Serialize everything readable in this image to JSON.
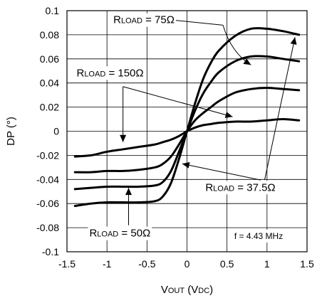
{
  "chart_data": {
    "type": "line",
    "title": "",
    "xlabel": {
      "main": "V",
      "sub1": "OUT",
      "mid": " (V",
      "sub2": "DC",
      "end": ")"
    },
    "ylabel": "DP (°)",
    "xlim": [
      -1.5,
      1.5
    ],
    "ylim": [
      -0.1,
      0.1
    ],
    "x_ticks": [
      -1.5,
      -1,
      -0.5,
      0,
      0.5,
      1,
      1.5
    ],
    "x_tick_labels": [
      "-1.5",
      "-1",
      "-0.5",
      "0",
      "0.5",
      "1",
      "1.5"
    ],
    "y_ticks": [
      0.1,
      0.08,
      0.06,
      0.04,
      0.02,
      0,
      -0.02,
      -0.04,
      -0.06,
      -0.08,
      -0.1
    ],
    "y_tick_labels": [
      "0.1",
      "0.08",
      "0.06",
      "0.04",
      "0.02",
      "0",
      "-0.02",
      "-0.04",
      "-0.06",
      "-0.08",
      "-0.1"
    ],
    "grid": true,
    "series": [
      {
        "name": "RLOAD = 150Ω",
        "x": [
          -1.4,
          -1.2,
          -1.0,
          -0.8,
          -0.6,
          -0.4,
          -0.3,
          -0.2,
          -0.1,
          0,
          0.1,
          0.2,
          0.3,
          0.4,
          0.6,
          0.8,
          1.0,
          1.2,
          1.4
        ],
        "y": [
          -0.021,
          -0.02,
          -0.017,
          -0.015,
          -0.013,
          -0.011,
          -0.009,
          -0.007,
          -0.004,
          0,
          0.003,
          0.005,
          0.006,
          0.007,
          0.008,
          0.008,
          0.009,
          0.01,
          0.009
        ]
      },
      {
        "name": "RLOAD = 37.5Ω",
        "x": [
          -1.4,
          -1.2,
          -1.0,
          -0.8,
          -0.6,
          -0.4,
          -0.3,
          -0.2,
          -0.1,
          0,
          0.1,
          0.2,
          0.3,
          0.4,
          0.6,
          0.8,
          1.0,
          1.2,
          1.4
        ],
        "y": [
          -0.034,
          -0.034,
          -0.033,
          -0.033,
          -0.032,
          -0.03,
          -0.027,
          -0.021,
          -0.011,
          0,
          0.009,
          0.015,
          0.02,
          0.025,
          0.032,
          0.035,
          0.036,
          0.035,
          0.034
        ]
      },
      {
        "name": "RLOAD = 75Ω",
        "x": [
          -1.4,
          -1.2,
          -1.0,
          -0.8,
          -0.6,
          -0.4,
          -0.3,
          -0.2,
          -0.1,
          0,
          0.1,
          0.2,
          0.3,
          0.4,
          0.6,
          0.8,
          1.0,
          1.2,
          1.4
        ],
        "y": [
          -0.048,
          -0.047,
          -0.046,
          -0.046,
          -0.046,
          -0.045,
          -0.042,
          -0.033,
          -0.017,
          0,
          0.017,
          0.031,
          0.041,
          0.049,
          0.058,
          0.062,
          0.062,
          0.06,
          0.058
        ]
      },
      {
        "name": "RLOAD = 50Ω",
        "x": [
          -1.4,
          -1.2,
          -1.0,
          -0.8,
          -0.6,
          -0.4,
          -0.3,
          -0.2,
          -0.1,
          0,
          0.1,
          0.2,
          0.3,
          0.4,
          0.6,
          0.8,
          1.0,
          1.2,
          1.4
        ],
        "y": [
          -0.062,
          -0.06,
          -0.059,
          -0.059,
          -0.059,
          -0.058,
          -0.054,
          -0.043,
          -0.023,
          0,
          0.023,
          0.043,
          0.057,
          0.067,
          0.079,
          0.085,
          0.085,
          0.083,
          0.08
        ]
      }
    ],
    "annotations": [
      {
        "id": "r75",
        "main": "R",
        "sub": "LOAD",
        "value": " = 75Ω",
        "text_x": -0.92,
        "text_y": 0.0925,
        "arrows": [
          {
            "line": [
              [
                -0.22,
                0.0925
              ],
              [
                0.45,
                0.088
              ]
            ],
            "curve": [
              [
                0.45,
                0.088
              ],
              [
                0.8,
                0.055
              ]
            ],
            "head": [
              0.8,
              0.055
            ]
          }
        ]
      },
      {
        "id": "r150",
        "main": "R",
        "sub": "LOAD",
        "value": " = 150Ω",
        "text_x": -1.38,
        "text_y": 0.0485,
        "arrows": [
          {
            "line": [
              [
                -0.8,
                0.037
              ],
              [
                -0.8,
                -0.009
              ]
            ],
            "head": [
              -0.8,
              -0.009
            ]
          },
          {
            "line": [
              [
                -0.8,
                0.037
              ],
              [
                0.57,
                0.012
              ]
            ],
            "head": [
              0.57,
              0.012
            ]
          }
        ]
      },
      {
        "id": "r375",
        "main": "R",
        "sub": "LOAD",
        "value": " = 37.5Ω",
        "text_x": 0.23,
        "text_y": -0.0465,
        "arrows": [
          {
            "line": [
              [
                0.97,
                -0.0405
              ],
              [
                1.35,
                0.078
              ]
            ],
            "head": [
              1.35,
              0.078
            ]
          },
          {
            "line": [
              [
                0.92,
                -0.0405
              ],
              [
                -0.06,
                -0.027
              ]
            ],
            "head": [
              -0.06,
              -0.027
            ]
          }
        ]
      },
      {
        "id": "r50",
        "main": "R",
        "sub": "LOAD",
        "value": " = 50Ω",
        "text_x": -1.22,
        "text_y": -0.0845,
        "arrows": [
          {
            "line": [
              [
                -0.73,
                -0.078
              ],
              [
                -0.73,
                -0.047
              ]
            ],
            "head": [
              -0.73,
              -0.047
            ]
          }
        ]
      }
    ],
    "note": "f = 4.43 MHz",
    "note_pos": [
      0.45,
      -0.087
    ]
  }
}
